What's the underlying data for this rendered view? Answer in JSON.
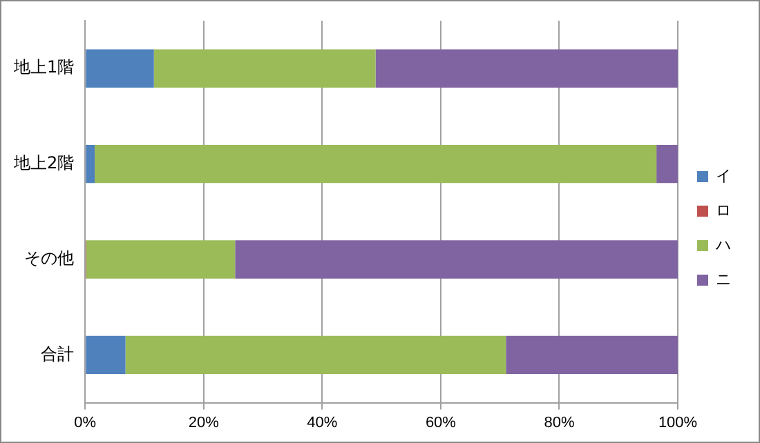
{
  "chart_data": {
    "type": "bar",
    "orientation": "horizontal",
    "stacked": true,
    "categories": [
      "地上1階",
      "地上2階",
      "その他",
      "合計"
    ],
    "series": [
      {
        "name": "イ",
        "color": "#4f81bd",
        "values": [
          11.6,
          1.6,
          0,
          6.8
        ]
      },
      {
        "name": "ロ",
        "color": "#c0504d",
        "values": [
          0,
          0,
          0.2,
          0
        ]
      },
      {
        "name": "ハ",
        "color": "#9bbb59",
        "values": [
          37.4,
          94.8,
          25.1,
          64.2
        ]
      },
      {
        "name": "ニ",
        "color": "#8064a2",
        "values": [
          51.0,
          3.6,
          74.7,
          29.0
        ]
      }
    ],
    "xlim": [
      0,
      100
    ],
    "xticks": [
      {
        "value": 0,
        "label": "0%"
      },
      {
        "value": 20,
        "label": "20%"
      },
      {
        "value": 40,
        "label": "40%"
      },
      {
        "value": 60,
        "label": "60%"
      },
      {
        "value": 80,
        "label": "80%"
      },
      {
        "value": 100,
        "label": "100%"
      }
    ],
    "grid": "x",
    "legend": "right"
  }
}
